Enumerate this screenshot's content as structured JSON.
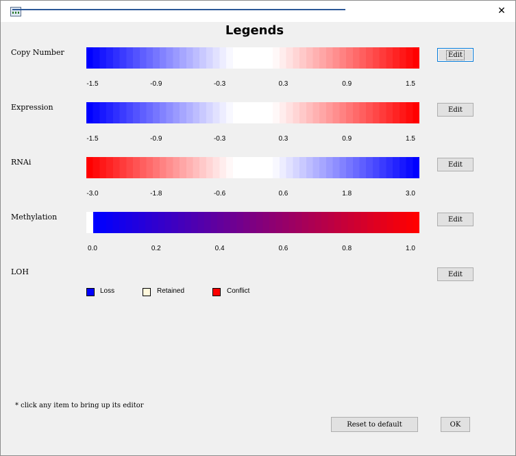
{
  "window": {
    "close_glyph": "✕",
    "icon": "app-window-icon"
  },
  "dialog": {
    "title": "Legends",
    "hint": "* click any item to bring up its editor",
    "reset_label": "Reset to default",
    "ok_label": "OK"
  },
  "legends": [
    {
      "label": "Copy Number",
      "edit_label": "Edit",
      "ticks": [
        "-1.5",
        "-0.9",
        "-0.3",
        "0.3",
        "0.9",
        "1.5"
      ],
      "colors": {
        "low": "#0000ff",
        "mid": "#ffffff",
        "high": "#ff0000"
      }
    },
    {
      "label": "Expression",
      "edit_label": "Edit",
      "ticks": [
        "-1.5",
        "-0.9",
        "-0.3",
        "0.3",
        "0.9",
        "1.5"
      ],
      "colors": {
        "low": "#0000ff",
        "mid": "#ffffff",
        "high": "#ff0000"
      }
    },
    {
      "label": "RNAi",
      "edit_label": "Edit",
      "ticks": [
        "-3.0",
        "-1.8",
        "-0.6",
        "0.6",
        "1.8",
        "3.0"
      ],
      "colors": {
        "low": "#ff0000",
        "mid": "#ffffff",
        "high": "#0000ff"
      }
    },
    {
      "label": "Methylation",
      "edit_label": "Edit",
      "ticks": [
        "0.0",
        "0.2",
        "0.4",
        "0.6",
        "0.8",
        "1.0"
      ],
      "colors": {
        "low": "#0000ff",
        "high": "#ff0000"
      }
    },
    {
      "label": "LOH",
      "edit_label": "Edit",
      "items": [
        {
          "label": "Loss",
          "color": "#0000ff"
        },
        {
          "label": "Retained",
          "color": "#fff8dc"
        },
        {
          "label": "Conflict",
          "color": "#ff0000"
        }
      ]
    }
  ]
}
